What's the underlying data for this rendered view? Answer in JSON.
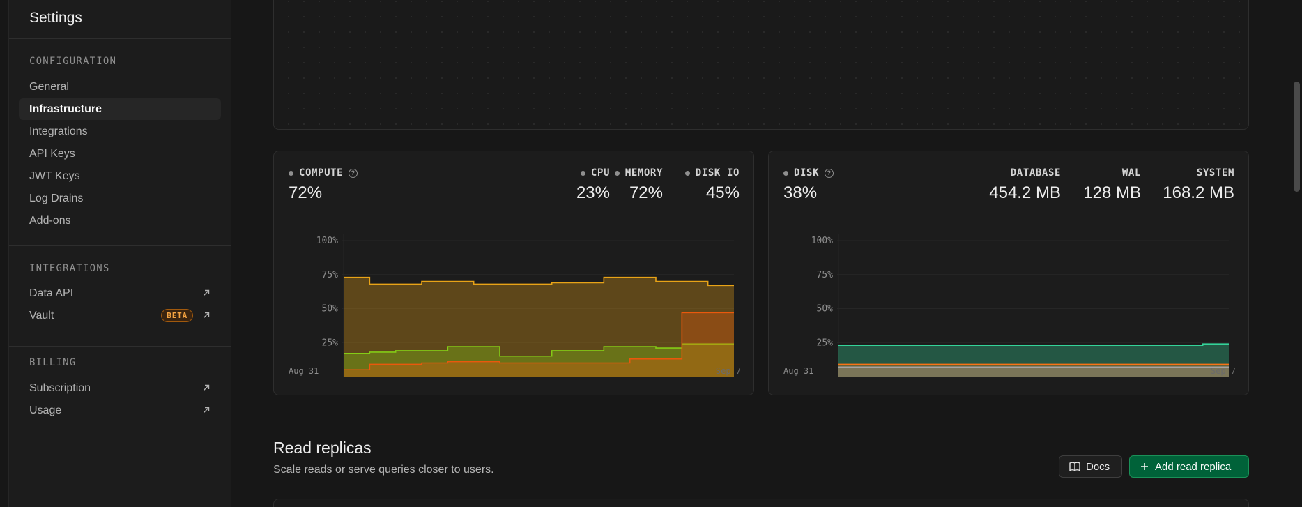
{
  "sidebar": {
    "title": "Settings",
    "configuration": {
      "label": "CONFIGURATION",
      "items": [
        {
          "label": "General",
          "active": false
        },
        {
          "label": "Infrastructure",
          "active": true
        },
        {
          "label": "Integrations",
          "active": false
        },
        {
          "label": "API Keys",
          "active": false
        },
        {
          "label": "JWT Keys",
          "active": false
        },
        {
          "label": "Log Drains",
          "active": false
        },
        {
          "label": "Add-ons",
          "active": false
        }
      ]
    },
    "integrations": {
      "label": "INTEGRATIONS",
      "items": [
        {
          "label": "Data API",
          "external": true
        },
        {
          "label": "Vault",
          "external": true,
          "badge": "BETA"
        }
      ]
    },
    "billing": {
      "label": "BILLING",
      "items": [
        {
          "label": "Subscription",
          "external": true
        },
        {
          "label": "Usage",
          "external": true
        }
      ]
    }
  },
  "compute_card": {
    "label": "COMPUTE",
    "value": "72%",
    "metrics": [
      {
        "label": "CPU",
        "value": "23%"
      },
      {
        "label": "MEMORY",
        "value": "72%"
      },
      {
        "label": "DISK IO",
        "value": "45%"
      }
    ]
  },
  "disk_card": {
    "label": "DISK",
    "value": "38%",
    "metrics": [
      {
        "label": "DATABASE",
        "value": "454.2 MB"
      },
      {
        "label": "WAL",
        "value": "128 MB"
      },
      {
        "label": "SYSTEM",
        "value": "168.2 MB"
      }
    ]
  },
  "chart_data": [
    {
      "type": "area",
      "x_start_label": "Aug 31",
      "x_end_label": "Sep 7",
      "y_ticks": [
        "100%",
        "75%",
        "50%",
        "25%"
      ],
      "ylim": [
        0,
        100
      ],
      "colors": {
        "memory": "#e8a317",
        "cpu": "#84cc16",
        "disk_io": "#ea580c"
      },
      "series": [
        {
          "key": "memory",
          "values": [
            73,
            68,
            68,
            70,
            70,
            68,
            68,
            68,
            69,
            69,
            73,
            73,
            70,
            70,
            67
          ]
        },
        {
          "key": "cpu",
          "values": [
            17,
            18,
            19,
            19,
            22,
            22,
            15,
            15,
            19,
            19,
            22,
            22,
            21,
            24,
            24
          ]
        },
        {
          "key": "disk_io",
          "values": [
            5,
            9,
            9,
            10,
            11,
            11,
            10,
            10,
            10,
            10,
            10,
            13,
            13,
            47,
            47
          ]
        }
      ]
    },
    {
      "type": "area",
      "x_start_label": "Aug 31",
      "x_end_label": "Sep 7",
      "y_ticks": [
        "100%",
        "75%",
        "50%",
        "25%"
      ],
      "ylim": [
        0,
        100
      ],
      "colors": {
        "database": "#34d399",
        "wal": "#f97316",
        "system": "#a3a3a3"
      },
      "series": [
        {
          "key": "database",
          "values": [
            23,
            23,
            23,
            23,
            23,
            23,
            23,
            23,
            23,
            23,
            23,
            23,
            23,
            23,
            24
          ]
        },
        {
          "key": "wal",
          "values": [
            9,
            9,
            9,
            9,
            9,
            9,
            9,
            9,
            9,
            9,
            9,
            9,
            9,
            9,
            9
          ]
        },
        {
          "key": "system",
          "values": [
            7,
            7,
            7,
            7,
            7,
            7,
            7,
            7,
            7,
            7,
            7,
            7,
            7,
            7,
            7
          ]
        }
      ]
    }
  ],
  "read_replicas": {
    "title": "Read replicas",
    "subtitle": "Scale reads or serve queries closer to users.",
    "docs_label": "Docs",
    "add_label": "Add read replica"
  }
}
